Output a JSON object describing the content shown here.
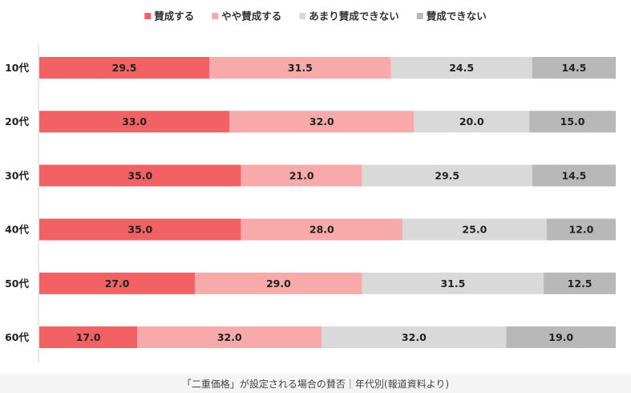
{
  "chart_data": {
    "type": "bar",
    "orientation": "horizontal",
    "stacked": true,
    "percent": true,
    "legend_placement": "top",
    "grid": false,
    "xlim": [
      0,
      100
    ],
    "categories": [
      "10代",
      "20代",
      "30代",
      "40代",
      "50代",
      "60代"
    ],
    "series": [
      {
        "name": "賛成する",
        "color": "#f26265",
        "values": [
          29.5,
          33.0,
          35.0,
          35.0,
          27.0,
          17.0
        ]
      },
      {
        "name": "やや賛成する",
        "color": "#f8aaab",
        "values": [
          31.5,
          32.0,
          21.0,
          28.0,
          29.0,
          32.0
        ]
      },
      {
        "name": "あまり賛成できない",
        "color": "#d9d9d9",
        "values": [
          24.5,
          20.0,
          29.5,
          25.0,
          31.5,
          32.0
        ]
      },
      {
        "name": "賛成できない",
        "color": "#b8b8b8",
        "values": [
          14.5,
          15.0,
          14.5,
          12.0,
          12.5,
          19.0
        ]
      }
    ]
  },
  "caption": "「二重価格」が設定される場合の賛否｜年代別(報道資料より)"
}
